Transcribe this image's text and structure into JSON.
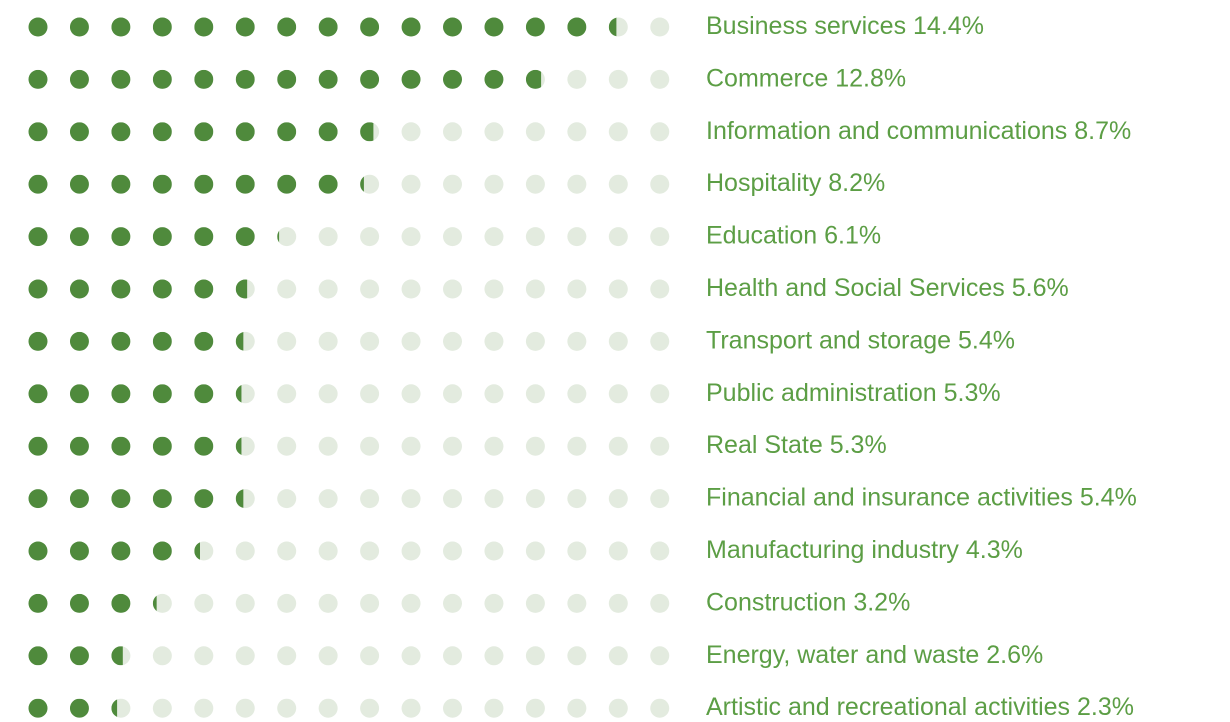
{
  "chart_data": {
    "type": "dot-bar",
    "categories": [
      "Business services",
      "Commerce",
      "Information and communications",
      "Hospitality",
      "Education",
      "Health and Social Services",
      "Transport and storage",
      "Public administration",
      "Real State",
      "Financial and insurance activities",
      "Manufacturing industry",
      "Construction",
      "Energy, water and waste",
      "Artistic and recreational activities"
    ],
    "values": [
      14.4,
      12.8,
      8.7,
      8.2,
      6.1,
      5.6,
      5.4,
      5.3,
      5.3,
      5.4,
      4.3,
      3.2,
      2.6,
      2.3
    ],
    "value_labels": [
      "14.4%",
      "12.8%",
      "8.7%",
      "8.2%",
      "6.1%",
      "5.6%",
      "5.4%",
      "5.3%",
      "5.3%",
      "5.4%",
      "4.3%",
      "3.2%",
      "2.6%",
      "2.3%"
    ],
    "xlim": [
      0,
      16
    ],
    "color": "#4f8a3c",
    "empty_color": "#e3ebdf"
  }
}
